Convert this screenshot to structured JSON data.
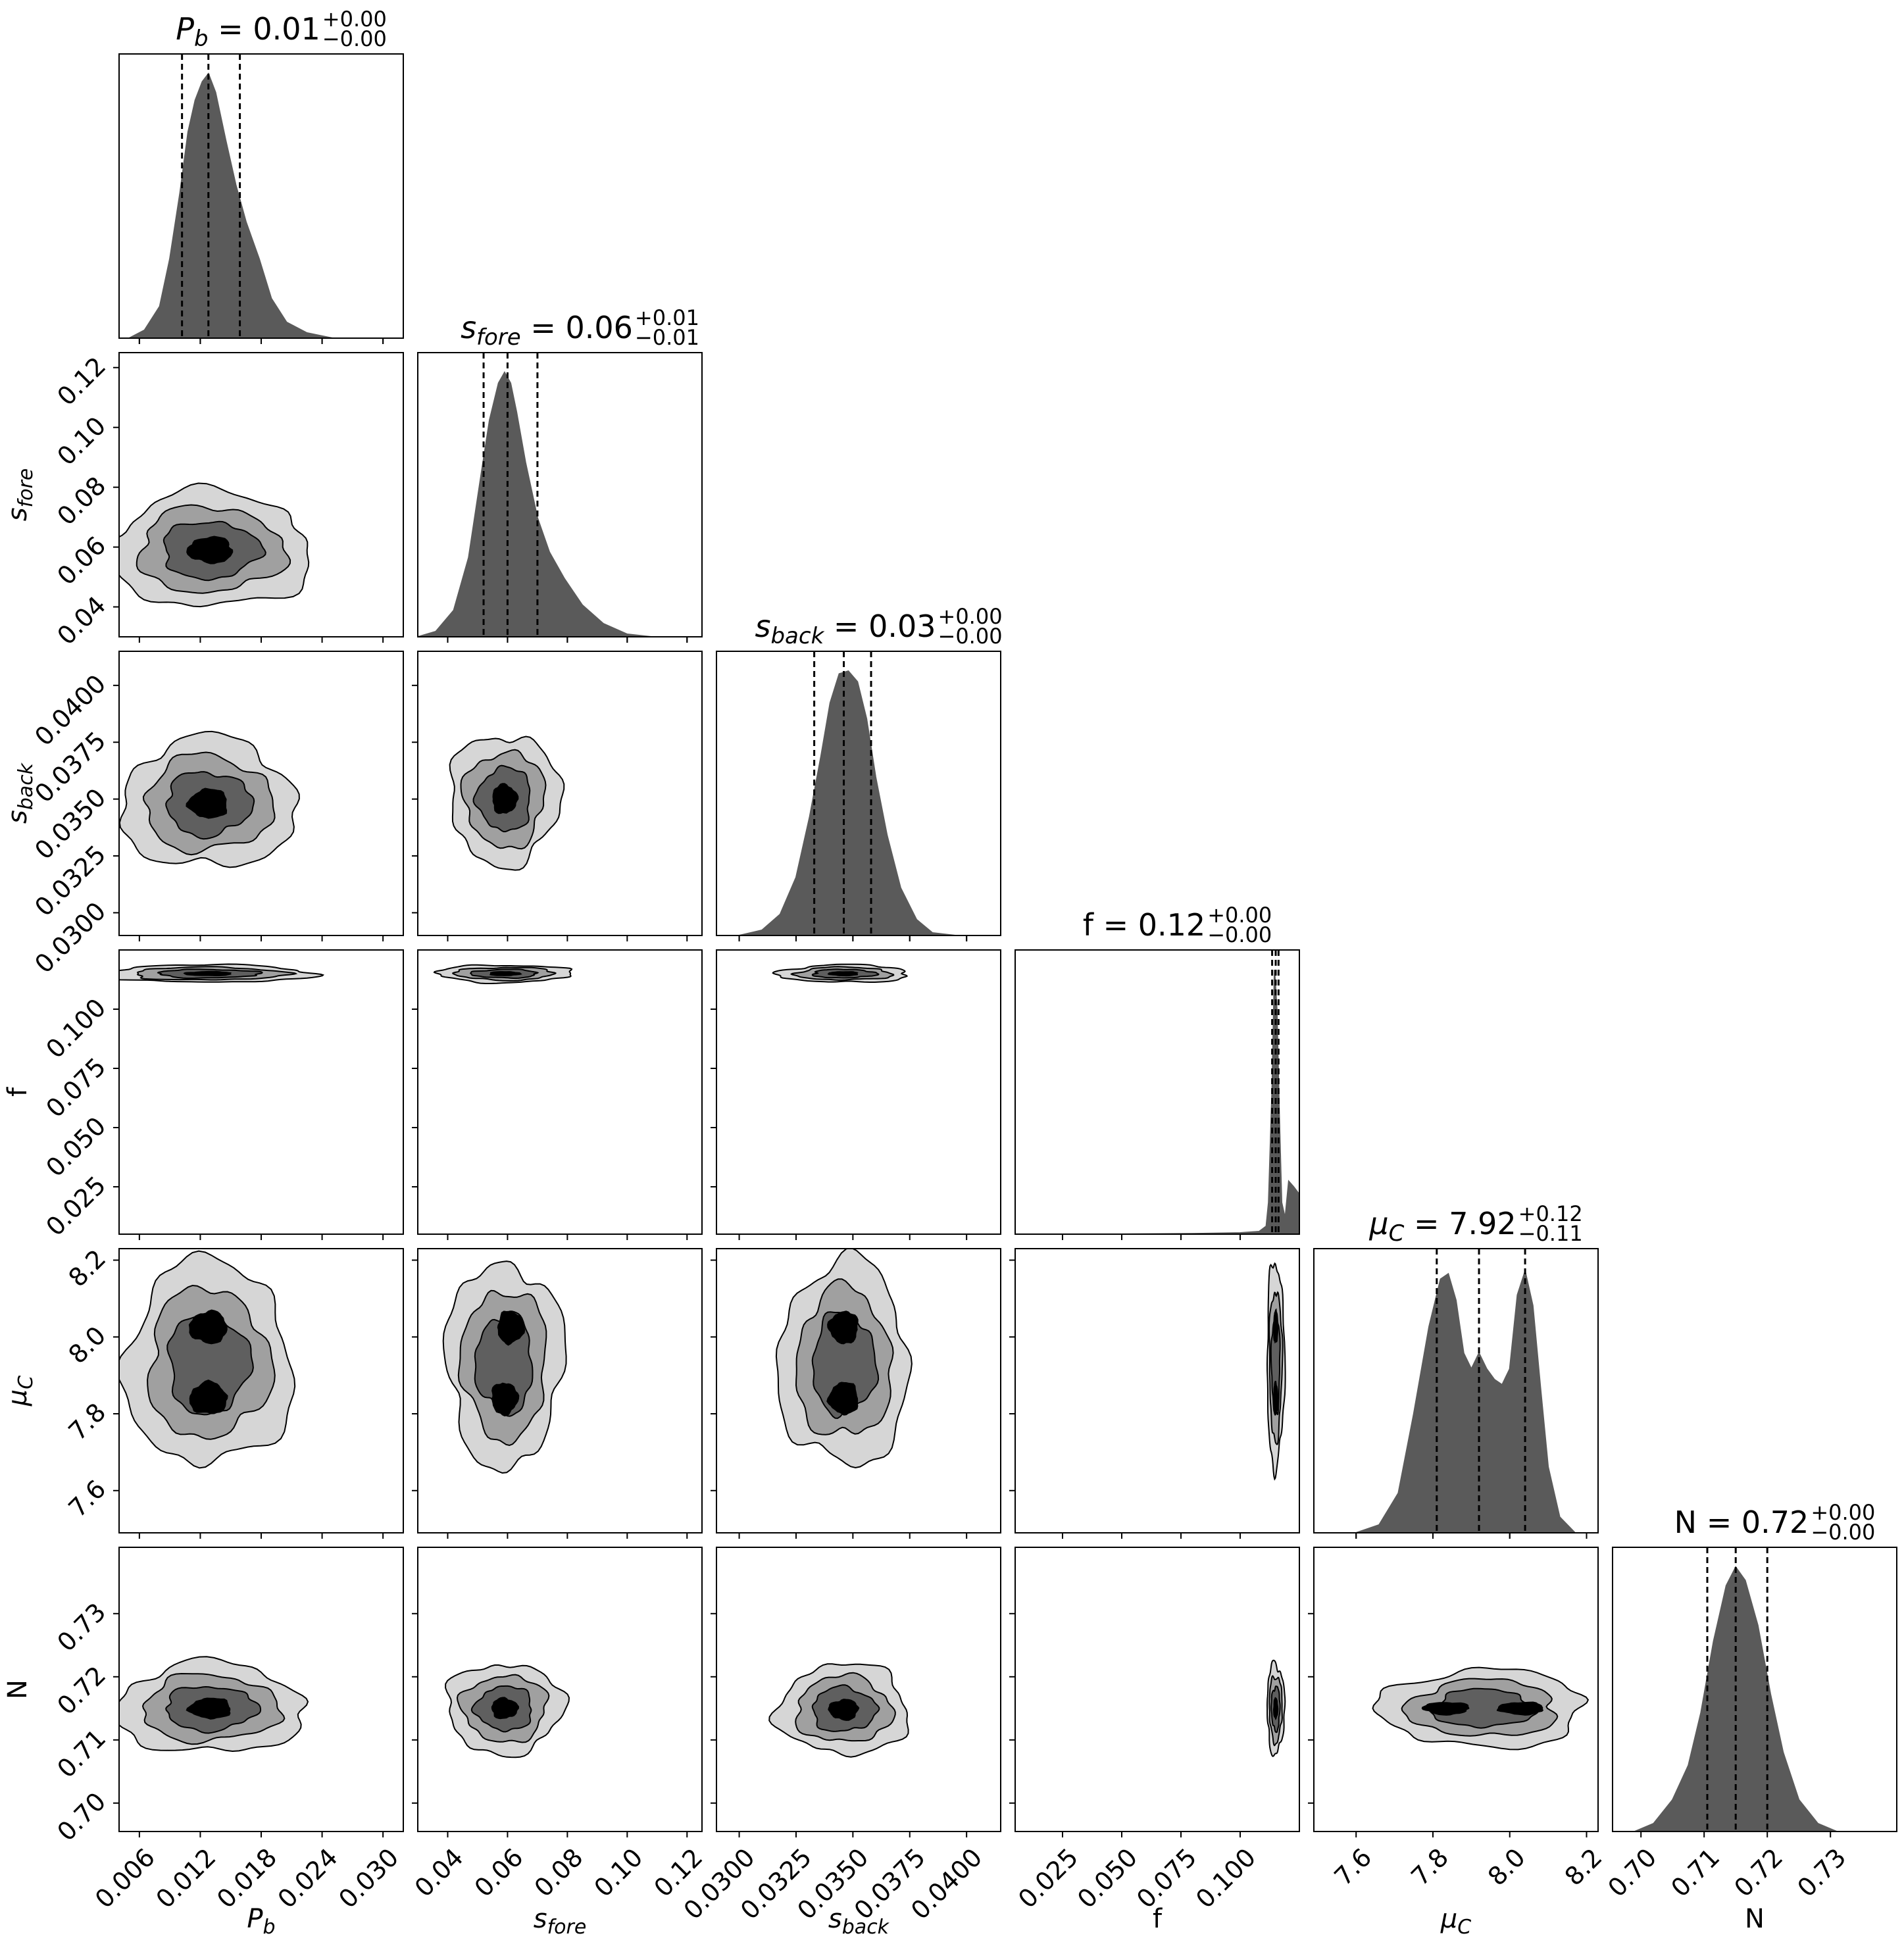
{
  "figure": {
    "type": "corner-plot",
    "colors": {
      "hist": "#5a5a5a",
      "contour_inner": "#000000",
      "contour_mid": "#5f5f5f",
      "contour_mid2": "#a0a0a0",
      "contour_outer": "#d6d6d6",
      "line": "#000000"
    }
  },
  "chart_data": {
    "type": "corner",
    "parameters": [
      {
        "id": "Pb",
        "label_base": "P",
        "label_sub": "b",
        "italic": true,
        "range": [
          0.004,
          0.032
        ],
        "ticks": [
          "0.006",
          "0.012",
          "0.018",
          "0.024",
          "0.030"
        ],
        "tick_values": [
          0.006,
          0.012,
          0.018,
          0.024,
          0.03
        ],
        "title_base": "P",
        "title_sub": "b",
        "title_value": " = 0.01",
        "title_plus": "+0.00",
        "title_minus": "−0.00",
        "quantiles": [
          0.0102,
          0.0128,
          0.0159
        ],
        "marginal": {
          "x": [
            0.005,
            0.0065,
            0.008,
            0.009,
            0.01,
            0.0108,
            0.0115,
            0.0122,
            0.0128,
            0.0135,
            0.0145,
            0.0155,
            0.0165,
            0.0178,
            0.019,
            0.0205,
            0.0225,
            0.025
          ],
          "y": [
            0.0,
            0.03,
            0.12,
            0.3,
            0.55,
            0.78,
            0.9,
            0.97,
            1.0,
            0.93,
            0.75,
            0.58,
            0.44,
            0.3,
            0.15,
            0.06,
            0.02,
            0.0
          ]
        }
      },
      {
        "id": "sfore",
        "label_base": "s",
        "label_sub": "fore",
        "italic": true,
        "range": [
          0.03,
          0.125
        ],
        "ticks": [
          "0.04",
          "0.06",
          "0.08",
          "0.10",
          "0.12"
        ],
        "tick_values": [
          0.04,
          0.06,
          0.08,
          0.1,
          0.12
        ],
        "title_base": "s",
        "title_sub": "fore",
        "title_value": " = 0.06",
        "title_plus": "+0.01",
        "title_minus": "−0.01",
        "quantiles": [
          0.052,
          0.06,
          0.07
        ],
        "marginal": {
          "x": [
            0.03,
            0.036,
            0.042,
            0.047,
            0.051,
            0.054,
            0.057,
            0.059,
            0.061,
            0.063,
            0.066,
            0.07,
            0.074,
            0.079,
            0.085,
            0.092,
            0.1,
            0.108
          ],
          "y": [
            0.0,
            0.02,
            0.1,
            0.3,
            0.6,
            0.82,
            0.96,
            1.0,
            0.96,
            0.85,
            0.66,
            0.45,
            0.32,
            0.22,
            0.12,
            0.05,
            0.01,
            0.0
          ]
        }
      },
      {
        "id": "sback",
        "label_base": "s",
        "label_sub": "back",
        "italic": true,
        "range": [
          0.029,
          0.0415
        ],
        "ticks": [
          "0.0300",
          "0.0325",
          "0.0350",
          "0.0375",
          "0.0400"
        ],
        "tick_values": [
          0.03,
          0.0325,
          0.035,
          0.0375,
          0.04
        ],
        "title_base": "s",
        "title_sub": "back",
        "title_value": " = 0.03",
        "title_plus": "+0.00",
        "title_minus": "−0.00",
        "quantiles": [
          0.0333,
          0.0346,
          0.0358
        ],
        "marginal": {
          "x": [
            0.03,
            0.031,
            0.0318,
            0.0325,
            0.0331,
            0.0336,
            0.034,
            0.0344,
            0.0348,
            0.0352,
            0.0356,
            0.036,
            0.0365,
            0.0371,
            0.0378,
            0.0385,
            0.0395
          ],
          "y": [
            0.0,
            0.02,
            0.08,
            0.22,
            0.45,
            0.68,
            0.88,
            0.99,
            1.0,
            0.96,
            0.82,
            0.6,
            0.38,
            0.18,
            0.06,
            0.01,
            0.0
          ]
        }
      },
      {
        "id": "f",
        "label_base": "f",
        "label_sub": "",
        "italic": false,
        "range": [
          0.005,
          0.125
        ],
        "ticks": [
          "0.025",
          "0.050",
          "0.075",
          "0.100"
        ],
        "tick_values": [
          0.025,
          0.05,
          0.075,
          0.1
        ],
        "title_base": "f",
        "title_sub": "",
        "title_value": " = 0.12",
        "title_plus": "+0.00",
        "title_minus": "−0.00",
        "quantiles": [
          0.1135,
          0.115,
          0.1162
        ],
        "marginal": {
          "x": [
            0.05,
            0.08,
            0.1,
            0.108,
            0.111,
            0.112,
            0.1135,
            0.1145,
            0.1155,
            0.1165,
            0.1175,
            0.119,
            0.1205,
            0.1225,
            0.125
          ],
          "y": [
            0.0,
            0.002,
            0.005,
            0.01,
            0.03,
            0.12,
            0.55,
            1.0,
            0.85,
            0.45,
            0.12,
            0.06,
            0.2,
            0.18,
            0.15
          ]
        }
      },
      {
        "id": "muC",
        "label_base": "μ",
        "label_sub": "C",
        "italic": true,
        "range": [
          7.49,
          8.23
        ],
        "ticks": [
          "7.6",
          "7.8",
          "8.0",
          "8.2"
        ],
        "tick_values": [
          7.6,
          7.8,
          8.0,
          8.2
        ],
        "title_base": "μ",
        "title_sub": "C",
        "title_value": " = 7.92",
        "title_plus": "+0.12",
        "title_minus": "−0.11",
        "quantiles": [
          7.81,
          7.92,
          8.04
        ],
        "marginal": {
          "x": [
            7.6,
            7.66,
            7.71,
            7.75,
            7.79,
            7.82,
            7.84,
            7.86,
            7.88,
            7.9,
            7.92,
            7.94,
            7.96,
            7.98,
            8.0,
            8.02,
            8.04,
            8.06,
            8.08,
            8.1,
            8.13,
            8.17
          ],
          "y": [
            0.0,
            0.03,
            0.15,
            0.45,
            0.78,
            0.96,
            0.98,
            0.88,
            0.68,
            0.62,
            0.68,
            0.62,
            0.58,
            0.56,
            0.62,
            0.9,
            0.99,
            0.86,
            0.55,
            0.25,
            0.06,
            0.0
          ]
        }
      },
      {
        "id": "N",
        "label_base": "N",
        "label_sub": "",
        "italic": false,
        "range": [
          0.6955,
          0.7405
        ],
        "ticks": [
          "0.70",
          "0.71",
          "0.72",
          "0.73"
        ],
        "tick_values": [
          0.7,
          0.71,
          0.72,
          0.73
        ],
        "title_base": "N",
        "title_sub": "",
        "title_value": " = 0.72",
        "title_plus": "+0.00",
        "title_minus": "−0.00",
        "quantiles": [
          0.7105,
          0.715,
          0.72
        ],
        "marginal": {
          "x": [
            0.699,
            0.702,
            0.705,
            0.7075,
            0.7095,
            0.7115,
            0.7135,
            0.715,
            0.7165,
            0.7185,
            0.7205,
            0.7225,
            0.725,
            0.728,
            0.731
          ],
          "y": [
            0.0,
            0.03,
            0.12,
            0.25,
            0.45,
            0.72,
            0.93,
            1.0,
            0.95,
            0.78,
            0.52,
            0.3,
            0.12,
            0.03,
            0.0
          ]
        }
      }
    ],
    "pairs": [
      {
        "row": 1,
        "col": 0,
        "center": [
          0.013,
          0.059
        ],
        "spread": [
          0.0048,
          0.0095
        ],
        "cores": [
          {
            "dx": 0,
            "dy": 0
          }
        ]
      },
      {
        "row": 2,
        "col": 0,
        "center": [
          0.0128,
          0.0348
        ],
        "spread": [
          0.0042,
          0.0014
        ],
        "cores": [
          {
            "dx": 0,
            "dy": 0
          }
        ]
      },
      {
        "row": 2,
        "col": 1,
        "center": [
          0.059,
          0.035
        ],
        "spread": [
          0.009,
          0.0014
        ],
        "cores": [
          {
            "dx": 0,
            "dy": 0
          }
        ]
      },
      {
        "row": 3,
        "col": 0,
        "center": [
          0.0128,
          0.115
        ],
        "spread": [
          0.005,
          0.0018
        ],
        "cores": [
          {
            "dx": 0,
            "dy": 0
          }
        ]
      },
      {
        "row": 3,
        "col": 1,
        "center": [
          0.059,
          0.115
        ],
        "spread": [
          0.011,
          0.0018
        ],
        "cores": [
          {
            "dx": 0,
            "dy": 0
          }
        ]
      },
      {
        "row": 3,
        "col": 2,
        "center": [
          0.0346,
          0.115
        ],
        "spread": [
          0.0014,
          0.0018
        ],
        "cores": [
          {
            "dx": 0,
            "dy": 0
          }
        ]
      },
      {
        "row": 4,
        "col": 0,
        "center": [
          0.0128,
          7.93
        ],
        "spread": [
          0.004,
          0.13
        ],
        "cores": [
          {
            "dx": 0,
            "dy": 0.095
          },
          {
            "dx": 0,
            "dy": -0.09
          }
        ]
      },
      {
        "row": 4,
        "col": 1,
        "center": [
          0.059,
          7.93
        ],
        "spread": [
          0.0095,
          0.13
        ],
        "cores": [
          {
            "dx": 0.002,
            "dy": 0.095
          },
          {
            "dx": 0,
            "dy": -0.09
          }
        ]
      },
      {
        "row": 4,
        "col": 2,
        "center": [
          0.0346,
          7.93
        ],
        "spread": [
          0.0014,
          0.13
        ],
        "cores": [
          {
            "dx": 0,
            "dy": 0.095
          },
          {
            "dx": 0,
            "dy": -0.09
          }
        ]
      },
      {
        "row": 4,
        "col": 3,
        "center": [
          0.115,
          7.93
        ],
        "spread": [
          0.0018,
          0.13
        ],
        "cores": [
          {
            "dx": 0,
            "dy": 0.095
          },
          {
            "dx": 0,
            "dy": -0.09
          }
        ]
      },
      {
        "row": 5,
        "col": 0,
        "center": [
          0.013,
          0.715
        ],
        "spread": [
          0.0045,
          0.0035
        ],
        "cores": [
          {
            "dx": 0,
            "dy": 0
          }
        ]
      },
      {
        "row": 5,
        "col": 1,
        "center": [
          0.059,
          0.715
        ],
        "spread": [
          0.0095,
          0.0035
        ],
        "cores": [
          {
            "dx": 0,
            "dy": 0
          }
        ]
      },
      {
        "row": 5,
        "col": 2,
        "center": [
          0.0346,
          0.7148
        ],
        "spread": [
          0.0014,
          0.0035
        ],
        "cores": [
          {
            "dx": 0,
            "dy": 0
          }
        ]
      },
      {
        "row": 5,
        "col": 3,
        "center": [
          0.115,
          0.715
        ],
        "spread": [
          0.0018,
          0.0035
        ],
        "cores": [
          {
            "dx": 0,
            "dy": 0
          }
        ]
      },
      {
        "row": 5,
        "col": 4,
        "center": [
          7.93,
          0.715
        ],
        "spread": [
          0.13,
          0.003
        ],
        "cores": [
          {
            "dx": -0.095,
            "dy": 0
          },
          {
            "dx": 0.1,
            "dy": 0
          }
        ]
      }
    ]
  }
}
